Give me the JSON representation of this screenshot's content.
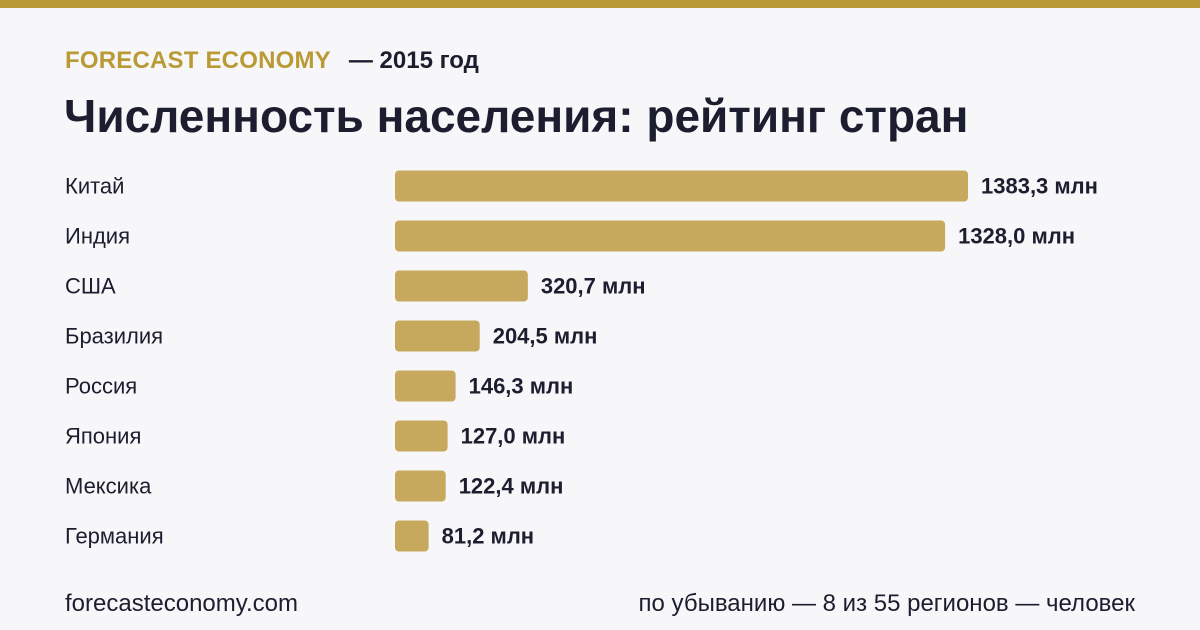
{
  "header": {
    "brand": "FORECAST ECONOMY",
    "year_label": "— 2015 год",
    "title": "Численность населения: рейтинг стран"
  },
  "footer": {
    "site": "forecasteconomy.com",
    "note": "по убыванию — 8 из 55 регионов — человек"
  },
  "colors": {
    "accent": "#b99a35",
    "bar": "#c6a95c",
    "text": "#1c1d2e",
    "background": "#f7f7fa"
  },
  "chart_data": {
    "type": "bar",
    "orientation": "horizontal",
    "title": "Численность населения: рейтинг стран",
    "categories": [
      "Китай",
      "Индия",
      "США",
      "Бразилия",
      "Россия",
      "Япония",
      "Мексика",
      "Германия"
    ],
    "values": [
      1383.3,
      1328.0,
      320.7,
      204.5,
      146.3,
      127.0,
      122.4,
      81.2
    ],
    "value_labels": [
      "1383,3 млн",
      "1328,0 млн",
      "320,7 млн",
      "204,5 млн",
      "146,3 млн",
      "127,0 млн",
      "122,4 млн",
      "81,2 млн"
    ],
    "unit": "млн",
    "xlim": [
      0,
      1383.3
    ],
    "grid": false,
    "legend": "none"
  }
}
